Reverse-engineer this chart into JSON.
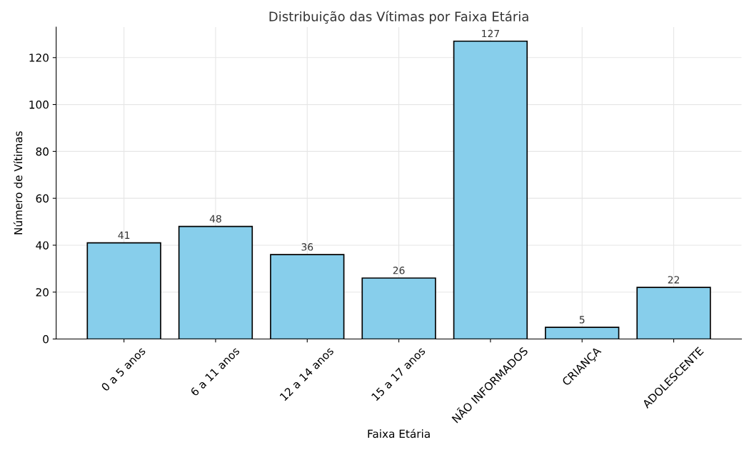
{
  "chart_data": {
    "type": "bar",
    "title": "Distribuição das Vítimas por Faixa Etária",
    "xlabel": "Faixa Etária",
    "ylabel": "Número de Vítimas",
    "categories": [
      "0 a 5 anos",
      "6 a 11 anos",
      "12 a 14 anos",
      "15 a 17 anos",
      "NÃO INFORMADOS",
      "CRIANÇA",
      "ADOLESCENTE"
    ],
    "values": [
      41,
      48,
      36,
      26,
      127,
      5,
      22
    ],
    "color": "#87ceeb",
    "ylim": [
      0,
      133
    ],
    "yticks": [
      0,
      20,
      40,
      60,
      80,
      100,
      120
    ],
    "grid": true,
    "data_labels": true
  }
}
